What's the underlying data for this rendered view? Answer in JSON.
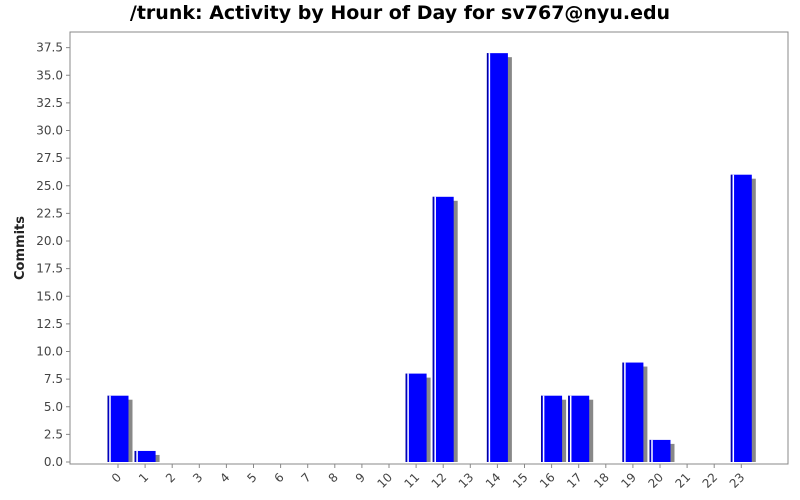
{
  "chart_data": {
    "type": "bar",
    "title": "/trunk: Activity by Hour of Day for sv767@nyu.edu",
    "xlabel": "",
    "ylabel": "Commits",
    "categories": [
      "0",
      "1",
      "2",
      "3",
      "4",
      "5",
      "6",
      "7",
      "8",
      "9",
      "10",
      "11",
      "12",
      "13",
      "14",
      "15",
      "16",
      "17",
      "18",
      "19",
      "20",
      "21",
      "22",
      "23"
    ],
    "values": [
      6,
      1,
      0,
      0,
      0,
      0,
      0,
      0,
      0,
      0,
      0,
      8,
      24,
      0,
      37,
      0,
      6,
      6,
      0,
      9,
      2,
      0,
      0,
      26
    ],
    "ylim": [
      0,
      39.5
    ],
    "yticks": [
      "0.0",
      "2.5",
      "5.0",
      "7.5",
      "10.0",
      "12.5",
      "15.0",
      "17.5",
      "20.0",
      "22.5",
      "25.0",
      "27.5",
      "30.0",
      "32.5",
      "35.0",
      "37.5"
    ],
    "grid": false,
    "legend": "none",
    "colors": {
      "bar": "#0000ff",
      "bar_edge": "#00008b",
      "bar_highlight": "#ffffff",
      "shadow": "#888888",
      "axis": "#888888",
      "plot_bg": "#ffffff"
    }
  }
}
